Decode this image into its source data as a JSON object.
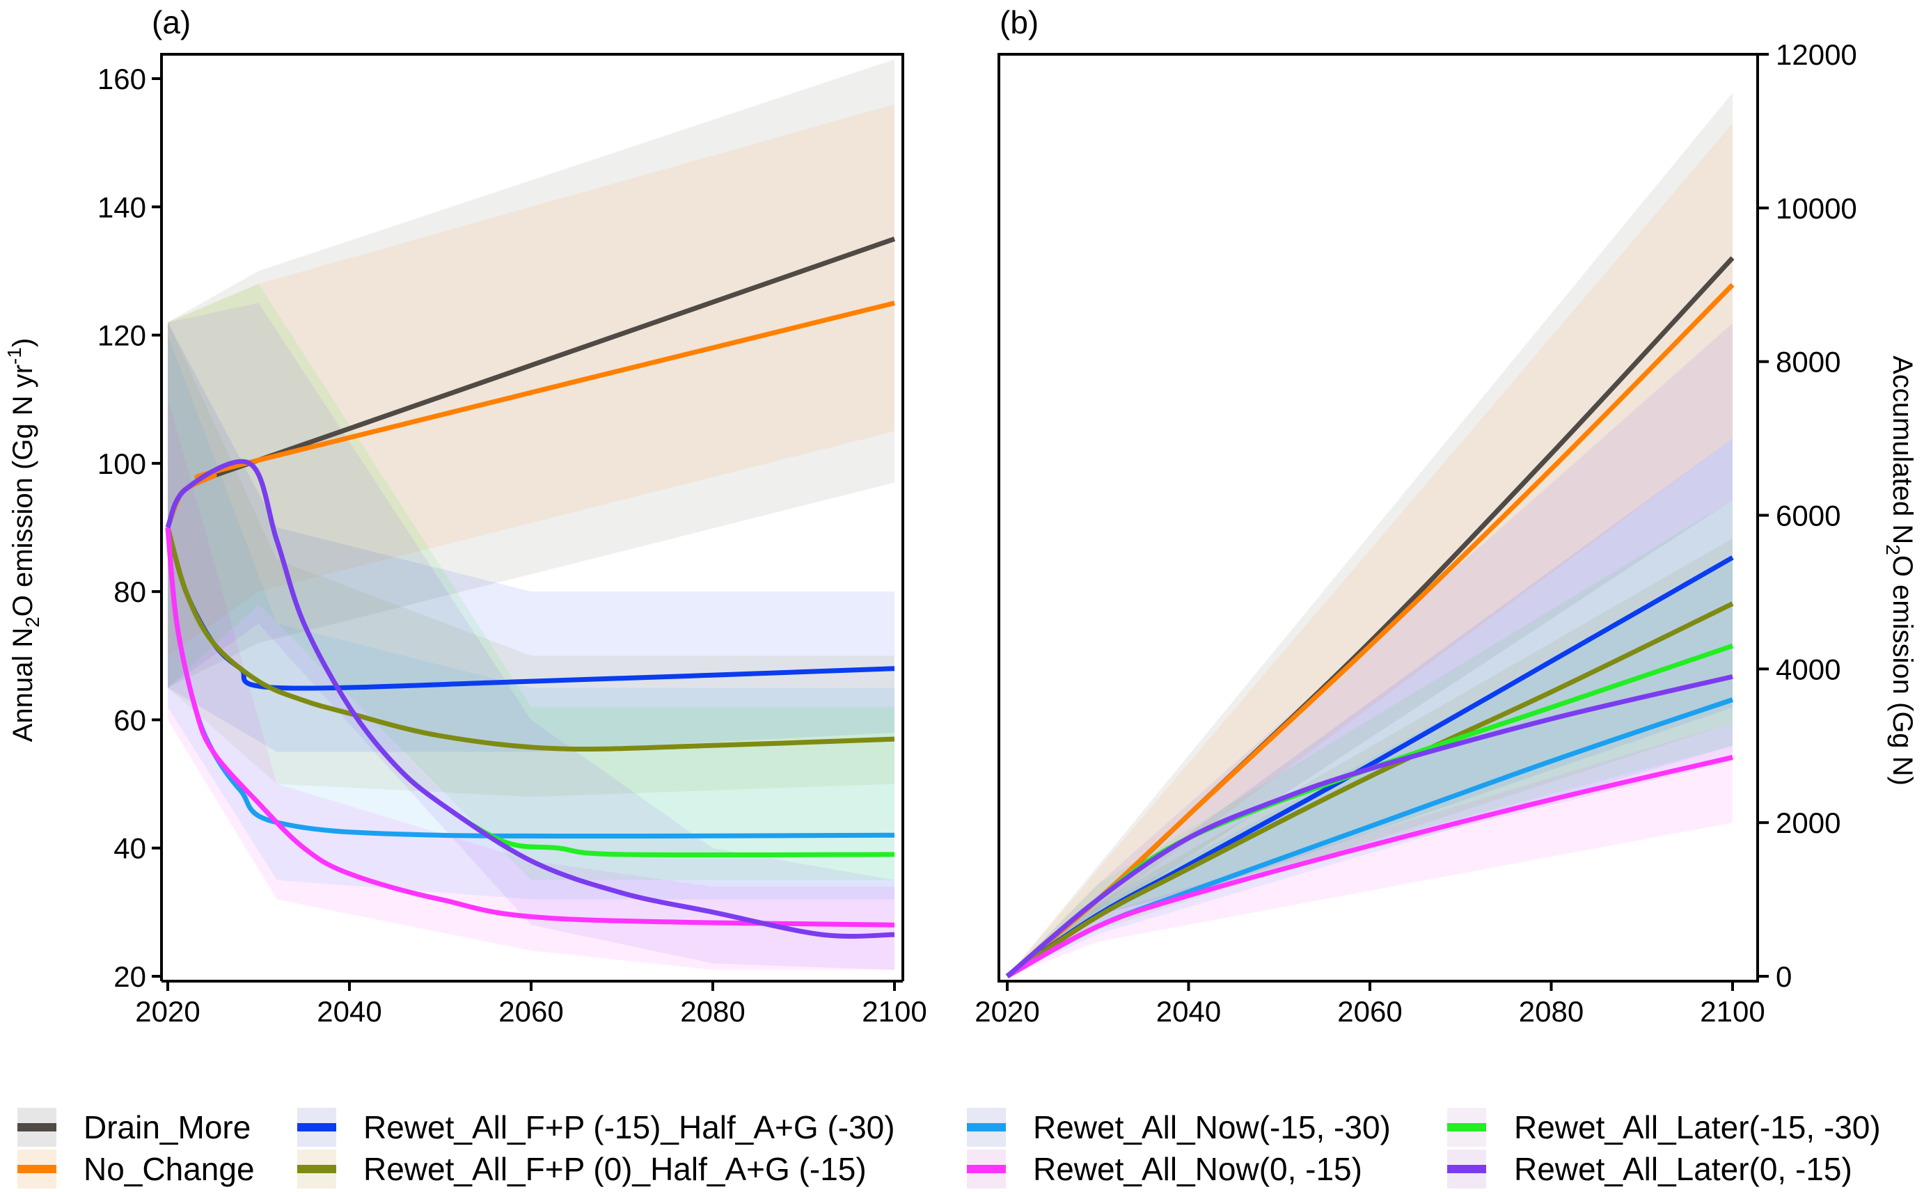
{
  "chart_data": [
    {
      "type": "line",
      "panel_label": "(a)",
      "ylabel": "Annual N2O emission (Gg N yr-1)",
      "ylabel_parts": {
        "pre": "Annual N",
        "sub": "2",
        "mid": "O emission (Gg N yr",
        "sup": "-1",
        "post": ")"
      },
      "xlim": [
        2020,
        2100
      ],
      "ylim": [
        20,
        160
      ],
      "xticks": [
        2020,
        2040,
        2060,
        2080,
        2100
      ],
      "yticks": [
        20,
        40,
        60,
        80,
        100,
        120,
        140,
        160
      ],
      "grid": false,
      "series": [
        {
          "name": "Drain_More",
          "color": "#4f4a45",
          "x": [
            2020,
            2021,
            2022,
            2025,
            2030,
            2100
          ],
          "y": [
            90,
            94,
            96,
            98,
            100.5,
            135
          ],
          "band": {
            "x": [
              2020,
              2030,
              2100
            ],
            "low": [
              65,
              72,
              97
            ],
            "high": [
              122,
              130,
              163
            ]
          }
        },
        {
          "name": "No_Change",
          "color": "#ff8000",
          "x": [
            2020,
            2021,
            2022,
            2025,
            2030,
            2100
          ],
          "y": [
            90,
            94,
            96,
            98,
            100.5,
            125
          ],
          "band": {
            "x": [
              2020,
              2030,
              2100
            ],
            "low": [
              70,
              80,
              105
            ],
            "high": [
              122,
              128,
              156
            ]
          }
        },
        {
          "name": "Rewet_All_F+P (-15)_Half_A+G (-30)",
          "color": "#0a3cf0",
          "x": [
            2020,
            2022,
            2025,
            2028,
            2032,
            2060,
            2100
          ],
          "y": [
            90,
            80,
            72,
            68,
            65,
            66,
            68
          ],
          "band": {
            "x": [
              2020,
              2032,
              2060,
              2100
            ],
            "low": [
              65,
              55,
              55,
              58
            ],
            "high": [
              122,
              90,
              80,
              80
            ]
          }
        },
        {
          "name": "Rewet_All_F+P (0)_Half_A+G (-15)",
          "color": "#7f8a12",
          "x": [
            2020,
            2022,
            2025,
            2030,
            2035,
            2040,
            2050,
            2063,
            2080,
            2100
          ],
          "y": [
            90,
            80,
            72,
            66,
            63,
            61,
            57.5,
            55.5,
            56,
            57
          ],
          "band": {
            "x": [
              2020,
              2032,
              2060,
              2100
            ],
            "low": [
              65,
              50,
              48,
              50
            ],
            "high": [
              122,
              85,
              70,
              70
            ]
          }
        },
        {
          "name": "Rewet_All_Now(-15, -30)",
          "color": "#1aa0f0",
          "x": [
            2020,
            2021,
            2023,
            2025,
            2028,
            2032,
            2050,
            2100
          ],
          "y": [
            90,
            75,
            62,
            55,
            49,
            44,
            42,
            42
          ],
          "band": {
            "x": [
              2020,
              2032,
              2060,
              2100
            ],
            "low": [
              62,
              35,
              32,
              32
            ],
            "high": [
              120,
              75,
              65,
              65
            ]
          }
        },
        {
          "name": "Rewet_All_Now(0, -15)",
          "color": "#ff33ff",
          "x": [
            2020,
            2021,
            2023,
            2025,
            2030,
            2035,
            2040,
            2050,
            2063,
            2100
          ],
          "y": [
            90,
            75,
            62,
            55,
            47,
            40,
            36,
            32,
            29,
            28
          ],
          "band": {
            "x": [
              2020,
              2032,
              2060,
              2080,
              2100
            ],
            "low": [
              60,
              32,
              24,
              21,
              21
            ],
            "high": [
              110,
              50,
              38,
              34,
              34
            ]
          }
        },
        {
          "name": "Rewet_All_Later(-15, -30)",
          "color": "#22ee22",
          "x": [
            2020,
            2022,
            2029,
            2032,
            2035,
            2040,
            2045,
            2050,
            2057,
            2063,
            2070,
            2100
          ],
          "y": [
            90,
            96,
            100,
            88,
            75,
            62,
            53,
            47,
            41,
            40,
            39,
            39
          ],
          "band": {
            "x": [
              2020,
              2030,
              2060,
              2100
            ],
            "low": [
              65,
              78,
              35,
              35
            ],
            "high": [
              122,
              128,
              62,
              62
            ]
          }
        },
        {
          "name": "Rewet_All_Later(0, -15)",
          "color": "#7b3cf0",
          "x": [
            2020,
            2022,
            2029,
            2032,
            2035,
            2040,
            2045,
            2050,
            2060,
            2070,
            2080,
            2092,
            2100
          ],
          "y": [
            90,
            96,
            100,
            88,
            75,
            62,
            53,
            47,
            38,
            33,
            30,
            26.5,
            26.5
          ],
          "band": {
            "x": [
              2020,
              2030,
              2060,
              2080,
              2100
            ],
            "low": [
              65,
              75,
              28,
              22,
              21
            ],
            "high": [
              122,
              125,
              60,
              40,
              35
            ]
          }
        }
      ]
    },
    {
      "type": "line",
      "panel_label": "(b)",
      "ylabel": "Accumulated N2O emission (Gg N)",
      "ylabel_parts": {
        "pre": "Accumulated N",
        "sub": "2",
        "mid": "O emission (Gg N)",
        "sup": "",
        "post": ""
      },
      "y_axis_side": "right",
      "xlim": [
        2020,
        2100
      ],
      "ylim": [
        0,
        12000
      ],
      "xticks": [
        2020,
        2040,
        2060,
        2080,
        2100
      ],
      "yticks": [
        0,
        2000,
        4000,
        6000,
        8000,
        10000,
        12000
      ],
      "grid": false,
      "series": [
        {
          "name": "Drain_More",
          "color": "#4f4a45",
          "x": [
            2020,
            2030,
            2040,
            2060,
            2080,
            2100
          ],
          "y": [
            0,
            1000,
            2100,
            4350,
            6800,
            9350
          ],
          "band": {
            "x": [
              2020,
              2100
            ],
            "low": [
              0,
              6200
            ],
            "high": [
              0,
              11500
            ]
          }
        },
        {
          "name": "No_Change",
          "color": "#ff8000",
          "x": [
            2020,
            2030,
            2040,
            2060,
            2080,
            2100
          ],
          "y": [
            0,
            1000,
            2100,
            4300,
            6600,
            9000
          ],
          "band": {
            "x": [
              2020,
              2100
            ],
            "low": [
              0,
              7000
            ],
            "high": [
              0,
              11100
            ]
          }
        },
        {
          "name": "Rewet_All_F+P (-15)_Half_A+G (-30)",
          "color": "#0a3cf0",
          "x": [
            2020,
            2030,
            2040,
            2060,
            2080,
            2100
          ],
          "y": [
            0,
            800,
            1450,
            2750,
            4100,
            5450
          ],
          "band": {
            "x": [
              2020,
              2030,
              2100
            ],
            "low": [
              0,
              650,
              3500
            ],
            "high": [
              0,
              1000,
              7000
            ]
          }
        },
        {
          "name": "Rewet_All_F+P (0)_Half_A+G (-15)",
          "color": "#7f8a12",
          "x": [
            2020,
            2030,
            2040,
            2060,
            2080,
            2100
          ],
          "y": [
            0,
            780,
            1400,
            2600,
            3700,
            4850
          ],
          "band": {
            "x": [
              2020,
              2030,
              2100
            ],
            "low": [
              0,
              600,
              3300
            ],
            "high": [
              0,
              950,
              5700
            ]
          }
        },
        {
          "name": "Rewet_All_Now(-15, -30)",
          "color": "#1aa0f0",
          "x": [
            2020,
            2030,
            2040,
            2060,
            2080,
            2100
          ],
          "y": [
            0,
            650,
            1100,
            1950,
            2800,
            3600
          ],
          "band": {
            "x": [
              2020,
              2030,
              2100
            ],
            "low": [
              0,
              550,
              3000
            ],
            "high": [
              0,
              900,
              5400
            ]
          }
        },
        {
          "name": "Rewet_All_Now(0, -15)",
          "color": "#ff33ff",
          "x": [
            2020,
            2030,
            2040,
            2060,
            2080,
            2100
          ],
          "y": [
            0,
            650,
            1050,
            1700,
            2300,
            2850
          ],
          "band": {
            "x": [
              2020,
              2030,
              2100
            ],
            "low": [
              0,
              450,
              2000
            ],
            "high": [
              0,
              800,
              3300
            ]
          }
        },
        {
          "name": "Rewet_All_Later(-15, -30)",
          "color": "#22ee22",
          "x": [
            2020,
            2030,
            2040,
            2060,
            2080,
            2100
          ],
          "y": [
            0,
            1000,
            1800,
            2700,
            3500,
            4300
          ],
          "band": {
            "x": [
              2020,
              2030,
              2100
            ],
            "low": [
              0,
              800,
              3000
            ],
            "high": [
              0,
              1200,
              6200
            ]
          }
        },
        {
          "name": "Rewet_All_Later(0, -15)",
          "color": "#7b3cf0",
          "x": [
            2020,
            2030,
            2040,
            2050,
            2060,
            2080,
            2100
          ],
          "y": [
            0,
            1000,
            1800,
            2300,
            2700,
            3350,
            3900
          ],
          "band": {
            "x": [
              2020,
              2030,
              2100
            ],
            "low": [
              0,
              800,
              2800
            ],
            "high": [
              0,
              1200,
              8500
            ]
          }
        }
      ]
    }
  ],
  "legend": {
    "placement": "bottom",
    "items": [
      {
        "label": "Drain_More",
        "color": "#4f4a45",
        "band": "#e6e6e6"
      },
      {
        "label": "No_Change",
        "color": "#ff8000",
        "band": "#fbeede"
      },
      {
        "label": "Rewet_All_F+P (-15)_Half_A+G (-30)",
        "color": "#0a3cf0",
        "band": "#e6e8f6"
      },
      {
        "label": "Rewet_All_F+P (0)_Half_A+G (-15)",
        "color": "#7f8a12",
        "band": "#f5f0e2"
      },
      {
        "label": "Rewet_All_Now(-15, -30)",
        "color": "#1aa0f0",
        "band": "#e6e8f6"
      },
      {
        "label": "Rewet_All_Now(0, -15)",
        "color": "#ff33ff",
        "band": "#f6e8f6"
      },
      {
        "label": "Rewet_All_Later(-15, -30)",
        "color": "#22ee22",
        "band": "#f6eef6"
      },
      {
        "label": "Rewet_All_Later(0, -15)",
        "color": "#7b3cf0",
        "band": "#f3e8f6"
      }
    ]
  }
}
